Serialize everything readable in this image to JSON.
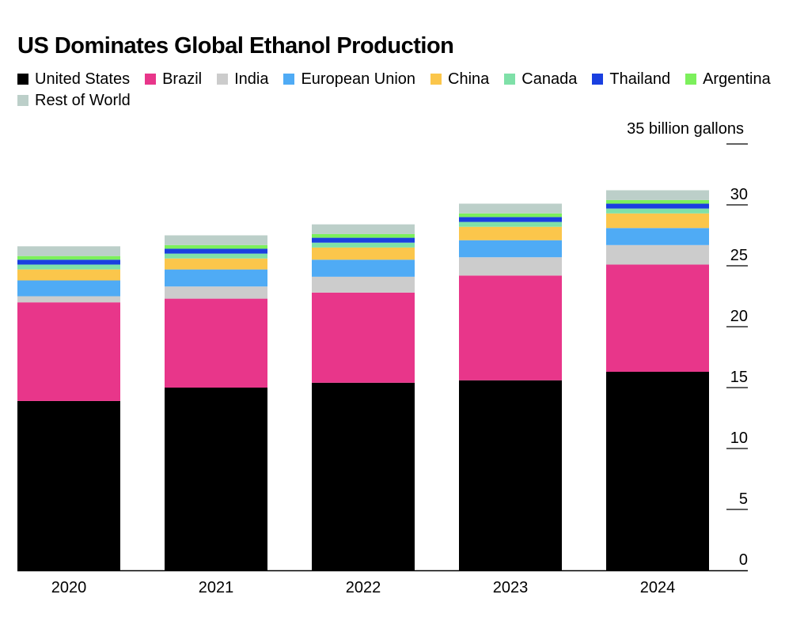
{
  "title": "US Dominates Global Ethanol Production",
  "chart_data": {
    "type": "bar",
    "stacked": true,
    "title": "US Dominates Global Ethanol Production",
    "unit_label": "35 billion gallons",
    "categories": [
      "2020",
      "2021",
      "2022",
      "2023",
      "2024"
    ],
    "ylim": [
      0,
      35
    ],
    "yticks": [
      0,
      5,
      10,
      15,
      20,
      25,
      30,
      35
    ],
    "ytick_labels": [
      "0",
      "5",
      "10",
      "15",
      "20",
      "25",
      "30",
      ""
    ],
    "grid": false,
    "legend_position": "top-left",
    "series": [
      {
        "name": "United States",
        "color": "#000000",
        "values": [
          13.9,
          15.0,
          15.4,
          15.6,
          16.3
        ]
      },
      {
        "name": "Brazil",
        "color": "#e8368a",
        "values": [
          8.1,
          7.3,
          7.4,
          8.6,
          8.8
        ]
      },
      {
        "name": "India",
        "color": "#cccccc",
        "values": [
          0.5,
          1.0,
          1.3,
          1.5,
          1.6
        ]
      },
      {
        "name": "European Union",
        "color": "#4fabf5",
        "values": [
          1.3,
          1.4,
          1.4,
          1.4,
          1.4
        ]
      },
      {
        "name": "China",
        "color": "#fbc64b",
        "values": [
          0.9,
          0.9,
          1.0,
          1.1,
          1.2
        ]
      },
      {
        "name": "Canada",
        "color": "#7fe0a8",
        "values": [
          0.4,
          0.4,
          0.4,
          0.4,
          0.4
        ]
      },
      {
        "name": "Thailand",
        "color": "#1a3fe0",
        "values": [
          0.4,
          0.4,
          0.4,
          0.4,
          0.4
        ]
      },
      {
        "name": "Argentina",
        "color": "#7cf05c",
        "values": [
          0.3,
          0.3,
          0.3,
          0.3,
          0.3
        ]
      },
      {
        "name": "Rest of World",
        "color": "#bccfc9",
        "values": [
          0.8,
          0.8,
          0.8,
          0.8,
          0.8
        ]
      }
    ]
  }
}
